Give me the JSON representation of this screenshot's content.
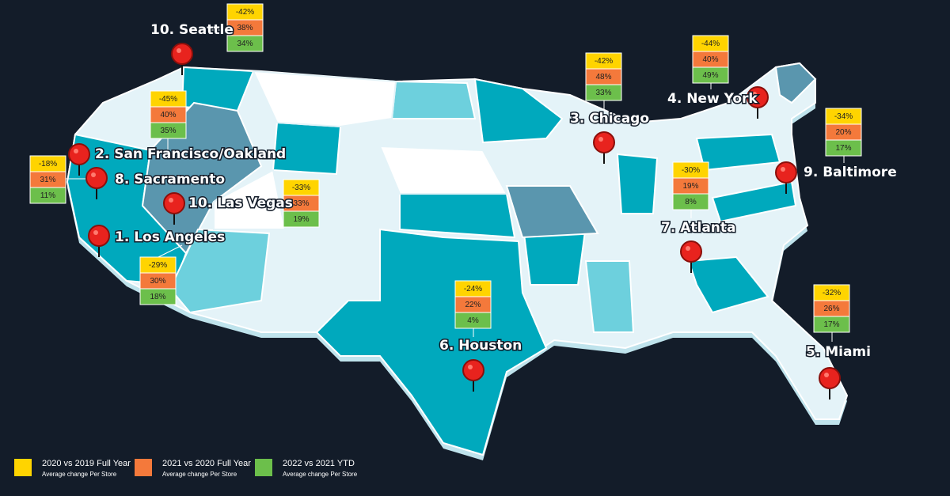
{
  "cities": [
    {
      "label": "10. Seattle",
      "changes": [
        "-42%",
        "38%",
        "34%"
      ]
    },
    {
      "label": "2. San Francisco/Oakland",
      "changes": [
        "-45%",
        "40%",
        "35%"
      ]
    },
    {
      "label": "8. Sacramento",
      "changes": [
        "-18%",
        "31%",
        "11%"
      ]
    },
    {
      "label": "10. Las Vegas",
      "changes": [
        "-33%",
        "33%",
        "19%"
      ]
    },
    {
      "label": "1. Los Angeles",
      "changes": [
        "-29%",
        "30%",
        "18%"
      ]
    },
    {
      "label": "6. Houston",
      "changes": [
        "-24%",
        "22%",
        "4%"
      ]
    },
    {
      "label": "3. Chicago",
      "changes": [
        "-42%",
        "48%",
        "33%"
      ]
    },
    {
      "label": "7. Atlanta",
      "changes": [
        "-30%",
        "19%",
        "8%"
      ]
    },
    {
      "label": "4. New York",
      "changes": [
        "-44%",
        "40%",
        "49%"
      ]
    },
    {
      "label": "9. Baltimore",
      "changes": [
        "-34%",
        "20%",
        "17%"
      ]
    },
    {
      "label": "5. Miami",
      "changes": [
        "-32%",
        "26%",
        "17%"
      ]
    }
  ],
  "legend": [
    {
      "title": "2020 vs 2019 Full Year",
      "subtitle": "Average change Per Store",
      "color": "#ffd400"
    },
    {
      "title": "2021 vs 2020 Full Year",
      "subtitle": "Average change Per Store",
      "color": "#f4793b"
    },
    {
      "title": "2022 vs 2021 YTD",
      "subtitle": "Average change Per Store",
      "color": "#6cbf4b"
    }
  ]
}
